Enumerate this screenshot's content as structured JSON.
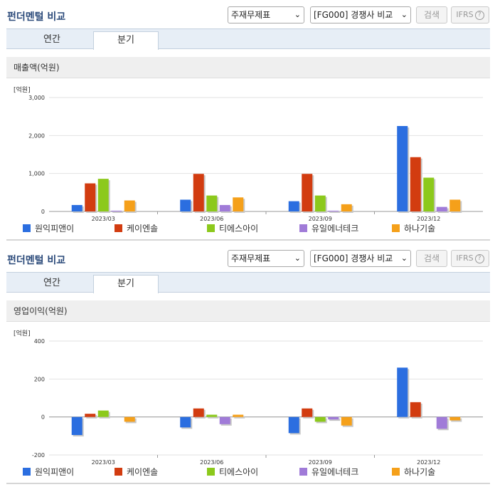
{
  "sections": [
    {
      "header": "펀더멘털 비교",
      "select_a": "주재무제표",
      "select_b": "[FG000] 경쟁사 비교",
      "search_label": "검색",
      "ifrs_label": "IFRS",
      "help_glyph": "?",
      "tabs": [
        {
          "label": "연간",
          "active": false
        },
        {
          "label": "분기",
          "active": true
        }
      ],
      "card_title": "매출액(억원)",
      "unit": "[억원]"
    },
    {
      "header": "펀더멘털 비교",
      "select_a": "주재무제표",
      "select_b": "[FG000] 경쟁사 비교",
      "search_label": "검색",
      "ifrs_label": "IFRS",
      "help_glyph": "?",
      "tabs": [
        {
          "label": "연간",
          "active": false
        },
        {
          "label": "분기",
          "active": true
        }
      ],
      "card_title": "영업이익(억원)",
      "unit": "[억원]"
    }
  ],
  "chart_data": [
    {
      "type": "bar",
      "title": "매출액(억원)",
      "ylabel": "[억원]",
      "ylim": [
        0,
        3000
      ],
      "yticks": [
        0,
        1000,
        2000,
        3000
      ],
      "ytick_labels": [
        "0",
        "1,000",
        "2,000",
        "3,000"
      ],
      "categories": [
        "2023/03",
        "2023/06",
        "2023/09",
        "2023/12"
      ],
      "legend": "bottom",
      "grid": true,
      "series": [
        {
          "name": "원익피앤이",
          "color": "#2b6ee0",
          "values": [
            170,
            310,
            270,
            2250
          ]
        },
        {
          "name": "케이엔솔",
          "color": "#d23c10",
          "values": [
            740,
            990,
            990,
            1430
          ]
        },
        {
          "name": "티에스아이",
          "color": "#8cc91c",
          "values": [
            860,
            420,
            420,
            890
          ]
        },
        {
          "name": "유일에너테크",
          "color": "#a07bd8",
          "values": [
            20,
            170,
            20,
            120
          ]
        },
        {
          "name": "하나기술",
          "color": "#f5a01a",
          "values": [
            290,
            370,
            190,
            310
          ]
        }
      ]
    },
    {
      "type": "bar",
      "title": "영업이익(억원)",
      "ylabel": "[억원]",
      "ylim": [
        -200,
        400
      ],
      "yticks": [
        -200,
        0,
        200,
        400
      ],
      "ytick_labels": [
        "-200",
        "0",
        "200",
        "400"
      ],
      "categories": [
        "2023/03",
        "2023/06",
        "2023/09",
        "2023/12"
      ],
      "legend": "bottom",
      "grid": true,
      "series": [
        {
          "name": "원익피앤이",
          "color": "#2b6ee0",
          "values": [
            -95,
            -55,
            -85,
            260
          ]
        },
        {
          "name": "케이엔솔",
          "color": "#d23c10",
          "values": [
            17,
            45,
            45,
            78
          ]
        },
        {
          "name": "티에스아이",
          "color": "#8cc91c",
          "values": [
            34,
            12,
            -25,
            0
          ]
        },
        {
          "name": "유일에너테크",
          "color": "#a07bd8",
          "values": [
            0,
            -38,
            -13,
            -62
          ]
        },
        {
          "name": "하나기술",
          "color": "#f5a01a",
          "values": [
            -25,
            12,
            -45,
            -18
          ]
        }
      ]
    }
  ]
}
